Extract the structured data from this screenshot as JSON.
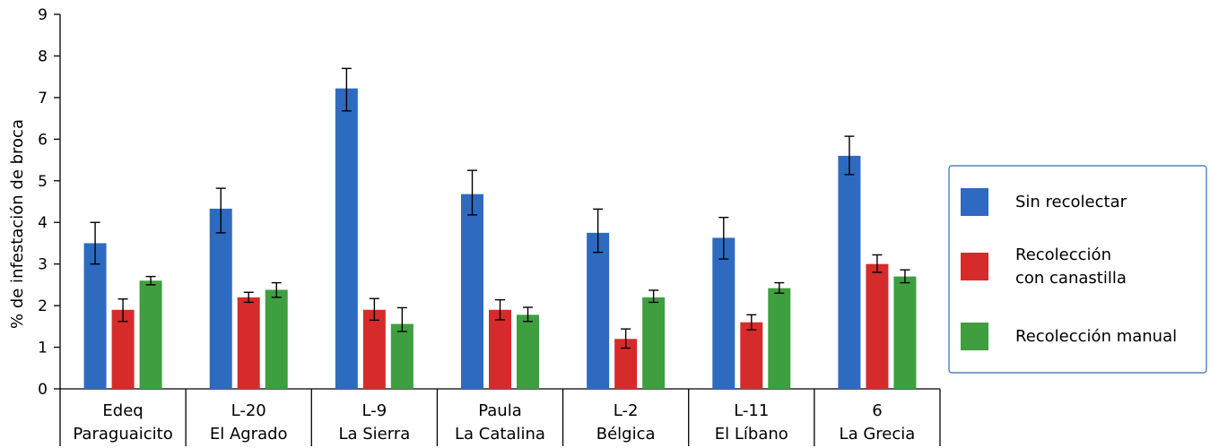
{
  "chart_data": {
    "type": "bar",
    "title": "",
    "ylabel": "% de infestación de broca",
    "xlabel": "",
    "ylim": [
      0,
      9
    ],
    "yticks": [
      0,
      1,
      2,
      3,
      4,
      5,
      6,
      7,
      8,
      9
    ],
    "grid": false,
    "legend_position": "right",
    "categories": [
      [
        "Edeq",
        "Paraguaicito"
      ],
      [
        "L-20",
        "El Agrado"
      ],
      [
        "L-9",
        "La Sierra"
      ],
      [
        "Paula",
        "La Catalina"
      ],
      [
        "L-2",
        "Bélgica"
      ],
      [
        "L-11",
        "El Líbano"
      ],
      [
        "6",
        "La Grecia"
      ]
    ],
    "series": [
      {
        "name": "Sin recolectar",
        "color": "#2e6bc0",
        "values": [
          3.5,
          4.33,
          7.22,
          4.68,
          3.75,
          3.63,
          5.6
        ],
        "error": [
          [
            3.0,
            4.0
          ],
          [
            3.75,
            4.82
          ],
          [
            6.68,
            7.7
          ],
          [
            4.18,
            5.25
          ],
          [
            3.28,
            4.32
          ],
          [
            3.12,
            4.12
          ],
          [
            5.15,
            6.07
          ]
        ]
      },
      {
        "name": "Recolección con canastilla",
        "name_lines": [
          "Recolección",
          "con canastilla"
        ],
        "color": "#d62b2b",
        "values": [
          1.9,
          2.2,
          1.9,
          1.9,
          1.2,
          1.6,
          3.0
        ],
        "error": [
          [
            1.62,
            2.16
          ],
          [
            2.08,
            2.32
          ],
          [
            1.65,
            2.17
          ],
          [
            1.66,
            2.14
          ],
          [
            0.98,
            1.44
          ],
          [
            1.42,
            1.78
          ],
          [
            2.8,
            3.22
          ]
        ]
      },
      {
        "name": "Recolección manual",
        "color": "#3f9e3f",
        "values": [
          2.6,
          2.38,
          1.56,
          1.78,
          2.2,
          2.42,
          2.7
        ],
        "error": [
          [
            2.5,
            2.7
          ],
          [
            2.2,
            2.55
          ],
          [
            1.38,
            1.95
          ],
          [
            1.62,
            1.96
          ],
          [
            2.08,
            2.37
          ],
          [
            2.3,
            2.55
          ],
          [
            2.55,
            2.86
          ]
        ]
      }
    ]
  }
}
